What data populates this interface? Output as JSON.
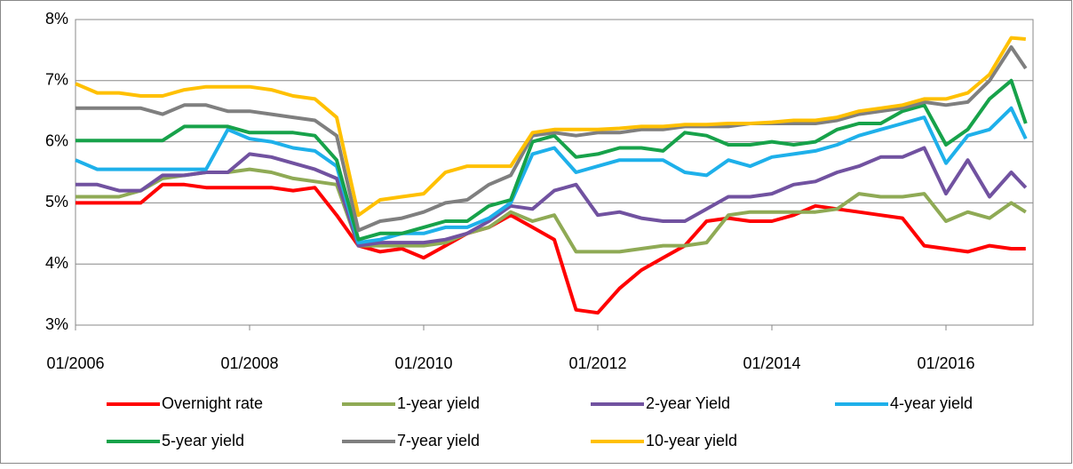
{
  "chart_data": {
    "type": "line",
    "x": [
      "01/2006",
      "04/2006",
      "07/2006",
      "10/2006",
      "01/2007",
      "04/2007",
      "07/2007",
      "10/2007",
      "01/2008",
      "04/2008",
      "07/2008",
      "10/2008",
      "01/2009",
      "04/2009",
      "07/2009",
      "10/2009",
      "01/2010",
      "04/2010",
      "07/2010",
      "10/2010",
      "01/2011",
      "04/2011",
      "07/2011",
      "10/2011",
      "01/2012",
      "04/2012",
      "07/2012",
      "10/2012",
      "01/2013",
      "04/2013",
      "07/2013",
      "10/2013",
      "01/2014",
      "04/2014",
      "07/2014",
      "10/2014",
      "01/2015",
      "04/2015",
      "07/2015",
      "10/2015",
      "01/2016",
      "04/2016",
      "07/2016",
      "10/2016",
      "12/2016"
    ],
    "xlim": [
      "01/2006",
      "01/2017"
    ],
    "xticks": [
      "01/2006",
      "01/2008",
      "01/2010",
      "01/2012",
      "01/2014",
      "01/2016"
    ],
    "ylim": [
      3,
      8
    ],
    "yticks": [
      {
        "value": 3,
        "label": "3%"
      },
      {
        "value": 4,
        "label": "4%"
      },
      {
        "value": 5,
        "label": "5%"
      },
      {
        "value": 6,
        "label": "6%"
      },
      {
        "value": 7,
        "label": "7%"
      },
      {
        "value": 8,
        "label": "8%"
      }
    ],
    "grid": true,
    "series": [
      {
        "name": "Overnight rate",
        "color": "#ff0000",
        "values": [
          5.0,
          5.0,
          5.0,
          5.0,
          5.3,
          5.3,
          5.25,
          5.25,
          5.25,
          5.25,
          5.2,
          5.25,
          4.8,
          4.3,
          4.2,
          4.25,
          4.1,
          4.3,
          4.5,
          4.6,
          4.8,
          4.6,
          4.4,
          3.25,
          3.2,
          3.6,
          3.9,
          4.1,
          4.3,
          4.7,
          4.75,
          4.7,
          4.7,
          4.8,
          4.95,
          4.9,
          4.85,
          4.8,
          4.75,
          4.3,
          4.25,
          4.2,
          4.3,
          4.25,
          4.25
        ]
      },
      {
        "name": "1-year yield",
        "color": "#8faa55",
        "values": [
          5.1,
          5.1,
          5.1,
          5.2,
          5.4,
          5.45,
          5.5,
          5.5,
          5.55,
          5.5,
          5.4,
          5.35,
          5.3,
          4.3,
          4.3,
          4.3,
          4.3,
          4.35,
          4.5,
          4.6,
          4.85,
          4.7,
          4.8,
          4.2,
          4.2,
          4.2,
          4.25,
          4.3,
          4.3,
          4.35,
          4.8,
          4.85,
          4.85,
          4.85,
          4.85,
          4.9,
          5.15,
          5.1,
          5.1,
          5.15,
          4.7,
          4.85,
          4.75,
          5.0,
          4.85
        ]
      },
      {
        "name": "2-year Yield",
        "color": "#7152a0",
        "values": [
          5.3,
          5.3,
          5.2,
          5.2,
          5.45,
          5.45,
          5.5,
          5.5,
          5.8,
          5.75,
          5.65,
          5.55,
          5.4,
          4.3,
          4.35,
          4.35,
          4.35,
          4.4,
          4.5,
          4.7,
          4.95,
          4.9,
          5.2,
          5.3,
          4.8,
          4.85,
          4.75,
          4.7,
          4.7,
          4.9,
          5.1,
          5.1,
          5.15,
          5.3,
          5.35,
          5.5,
          5.6,
          5.75,
          5.75,
          5.9,
          5.15,
          5.7,
          5.1,
          5.5,
          5.25
        ]
      },
      {
        "name": "4-year yield",
        "color": "#1eb0ea",
        "values": [
          5.7,
          5.55,
          5.55,
          5.55,
          5.55,
          5.55,
          5.55,
          6.2,
          6.05,
          6.0,
          5.9,
          5.85,
          5.6,
          4.35,
          4.4,
          4.5,
          4.5,
          4.6,
          4.6,
          4.75,
          5.0,
          5.8,
          5.9,
          5.5,
          5.6,
          5.7,
          5.7,
          5.7,
          5.5,
          5.45,
          5.7,
          5.6,
          5.75,
          5.8,
          5.85,
          5.95,
          6.1,
          6.2,
          6.3,
          6.4,
          5.65,
          6.1,
          6.2,
          6.55,
          6.05
        ]
      },
      {
        "name": "5-year yield",
        "color": "#17a24a",
        "values": [
          6.02,
          6.02,
          6.02,
          6.02,
          6.02,
          6.25,
          6.25,
          6.25,
          6.15,
          6.15,
          6.15,
          6.1,
          5.7,
          4.4,
          4.5,
          4.5,
          4.6,
          4.7,
          4.7,
          4.95,
          5.05,
          6.0,
          6.1,
          5.75,
          5.8,
          5.9,
          5.9,
          5.85,
          6.15,
          6.1,
          5.95,
          5.95,
          6.0,
          5.95,
          6.0,
          6.2,
          6.3,
          6.3,
          6.5,
          6.6,
          5.95,
          6.2,
          6.7,
          7.0,
          6.3
        ]
      },
      {
        "name": "7-year yield",
        "color": "#7f7f7f",
        "values": [
          6.55,
          6.55,
          6.55,
          6.55,
          6.45,
          6.6,
          6.6,
          6.5,
          6.5,
          6.45,
          6.4,
          6.35,
          6.1,
          4.55,
          4.7,
          4.75,
          4.85,
          5.0,
          5.05,
          5.3,
          5.45,
          6.1,
          6.15,
          6.1,
          6.15,
          6.15,
          6.2,
          6.2,
          6.25,
          6.25,
          6.25,
          6.3,
          6.3,
          6.3,
          6.3,
          6.35,
          6.45,
          6.5,
          6.55,
          6.65,
          6.6,
          6.65,
          7.0,
          7.55,
          7.2
        ]
      },
      {
        "name": "10-year yield",
        "color": "#ffc000",
        "values": [
          6.95,
          6.8,
          6.8,
          6.75,
          6.75,
          6.85,
          6.9,
          6.9,
          6.9,
          6.85,
          6.75,
          6.7,
          6.4,
          4.8,
          5.05,
          5.1,
          5.15,
          5.5,
          5.6,
          5.6,
          5.6,
          6.15,
          6.2,
          6.2,
          6.2,
          6.22,
          6.25,
          6.25,
          6.28,
          6.28,
          6.3,
          6.3,
          6.32,
          6.35,
          6.35,
          6.4,
          6.5,
          6.55,
          6.6,
          6.7,
          6.7,
          6.8,
          7.1,
          7.7,
          7.68
        ]
      }
    ]
  }
}
